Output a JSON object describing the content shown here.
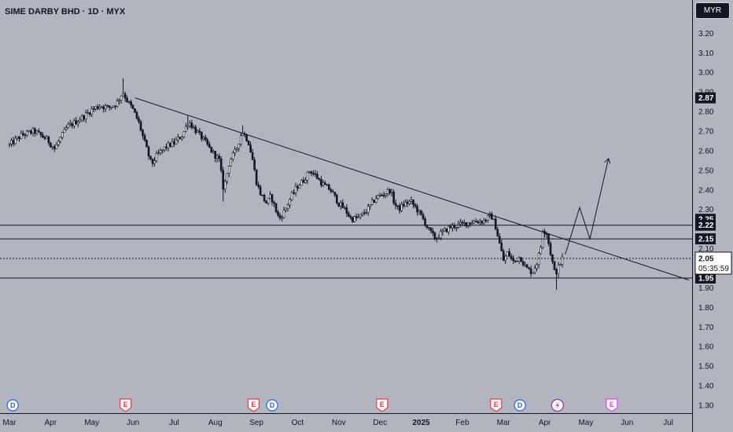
{
  "header": {
    "symbol_title": "SIME DARBY BHD · 1D · MYX",
    "currency": "MYR"
  },
  "chart_data": {
    "type": "candlestick",
    "title": "SIME DARBY BHD · 1D · MYX",
    "y_axis": {
      "ticks": [
        "3.20",
        "3.10",
        "3.00",
        "2.90",
        "2.80",
        "2.70",
        "2.60",
        "2.50",
        "2.40",
        "2.30",
        "2.10",
        "1.90",
        "1.80",
        "1.70",
        "1.60",
        "1.50",
        "1.40",
        "1.30"
      ],
      "ylim": [
        1.26,
        3.32
      ]
    },
    "x_axis": {
      "labels": [
        {
          "text": "Mar",
          "x": 0
        },
        {
          "text": "Apr",
          "x": 1
        },
        {
          "text": "May",
          "x": 2
        },
        {
          "text": "Jun",
          "x": 3
        },
        {
          "text": "Jul",
          "x": 4
        },
        {
          "text": "Aug",
          "x": 5
        },
        {
          "text": "Sep",
          "x": 6
        },
        {
          "text": "Oct",
          "x": 7
        },
        {
          "text": "Nov",
          "x": 8
        },
        {
          "text": "Dec",
          "x": 9
        },
        {
          "text": "2025",
          "x": 10,
          "bold": true
        },
        {
          "text": "Feb",
          "x": 11
        },
        {
          "text": "Mar",
          "x": 12
        },
        {
          "text": "Apr",
          "x": 13
        },
        {
          "text": "May",
          "x": 14
        },
        {
          "text": "Jun",
          "x": 15
        },
        {
          "text": "Jul",
          "x": 16
        }
      ],
      "xlim": [
        0,
        16.5
      ]
    },
    "price_path": [
      [
        0.0,
        2.63
      ],
      [
        0.3,
        2.68
      ],
      [
        0.6,
        2.7
      ],
      [
        0.9,
        2.66
      ],
      [
        1.1,
        2.61
      ],
      [
        1.2,
        2.65
      ],
      [
        1.4,
        2.72
      ],
      [
        1.7,
        2.76
      ],
      [
        1.9,
        2.79
      ],
      [
        2.0,
        2.81
      ],
      [
        2.2,
        2.83
      ],
      [
        2.4,
        2.82
      ],
      [
        2.6,
        2.84
      ],
      [
        2.75,
        2.9
      ],
      [
        2.85,
        2.86
      ],
      [
        3.0,
        2.81
      ],
      [
        3.15,
        2.74
      ],
      [
        3.3,
        2.63
      ],
      [
        3.45,
        2.53
      ],
      [
        3.6,
        2.58
      ],
      [
        3.8,
        2.62
      ],
      [
        4.0,
        2.64
      ],
      [
        4.2,
        2.68
      ],
      [
        4.35,
        2.75
      ],
      [
        4.5,
        2.71
      ],
      [
        4.7,
        2.66
      ],
      [
        4.9,
        2.6
      ],
      [
        5.1,
        2.55
      ],
      [
        5.2,
        2.4
      ],
      [
        5.35,
        2.55
      ],
      [
        5.5,
        2.6
      ],
      [
        5.65,
        2.7
      ],
      [
        5.8,
        2.65
      ],
      [
        5.9,
        2.56
      ],
      [
        6.0,
        2.44
      ],
      [
        6.1,
        2.38
      ],
      [
        6.25,
        2.33
      ],
      [
        6.35,
        2.37
      ],
      [
        6.45,
        2.31
      ],
      [
        6.55,
        2.25
      ],
      [
        6.7,
        2.3
      ],
      [
        6.85,
        2.37
      ],
      [
        7.0,
        2.42
      ],
      [
        7.15,
        2.45
      ],
      [
        7.3,
        2.5
      ],
      [
        7.45,
        2.47
      ],
      [
        7.6,
        2.43
      ],
      [
        7.8,
        2.4
      ],
      [
        8.0,
        2.33
      ],
      [
        8.15,
        2.3
      ],
      [
        8.3,
        2.25
      ],
      [
        8.5,
        2.26
      ],
      [
        8.7,
        2.3
      ],
      [
        8.9,
        2.36
      ],
      [
        9.1,
        2.38
      ],
      [
        9.25,
        2.4
      ],
      [
        9.35,
        2.33
      ],
      [
        9.45,
        2.3
      ],
      [
        9.6,
        2.33
      ],
      [
        9.75,
        2.34
      ],
      [
        9.9,
        2.3
      ],
      [
        10.05,
        2.25
      ],
      [
        10.2,
        2.19
      ],
      [
        10.35,
        2.15
      ],
      [
        10.5,
        2.18
      ],
      [
        10.7,
        2.21
      ],
      [
        10.9,
        2.22
      ],
      [
        11.1,
        2.23
      ],
      [
        11.3,
        2.24
      ],
      [
        11.5,
        2.24
      ],
      [
        11.7,
        2.27
      ],
      [
        11.8,
        2.22
      ],
      [
        11.9,
        2.13
      ],
      [
        12.0,
        2.04
      ],
      [
        12.1,
        2.08
      ],
      [
        12.25,
        2.03
      ],
      [
        12.4,
        2.06
      ],
      [
        12.55,
        2.0
      ],
      [
        12.7,
        1.98
      ],
      [
        12.8,
        2.02
      ],
      [
        12.9,
        2.1
      ],
      [
        12.95,
        2.2
      ],
      [
        13.05,
        2.18
      ],
      [
        13.15,
        2.07
      ],
      [
        13.25,
        1.97
      ],
      [
        13.35,
        2.01
      ],
      [
        13.45,
        2.06
      ]
    ],
    "key_points": [
      {
        "x": 2.75,
        "high": 2.97
      },
      {
        "x": 4.35,
        "high": 2.78
      },
      {
        "x": 5.65,
        "high": 2.73
      },
      {
        "x": 5.2,
        "low": 2.34
      },
      {
        "x": 13.27,
        "low": 1.89
      }
    ],
    "last_price": 2.05,
    "countdown": "05:35:59",
    "horizontal_levels": [
      {
        "price": 2.22,
        "label": "2.22",
        "style": "solid"
      },
      {
        "price": 2.15,
        "label": "2.15",
        "style": "solid"
      },
      {
        "price": 1.95,
        "label": "1.95",
        "style": "solid"
      },
      {
        "price": 2.05,
        "label": "2.05",
        "style": "dotted"
      }
    ],
    "price_tags": [
      {
        "price": 2.87,
        "label": "2.87"
      },
      {
        "price": 2.25,
        "label": "2.25"
      },
      {
        "price": 2.22,
        "label": "2.22"
      },
      {
        "price": 2.15,
        "label": "2.15"
      },
      {
        "price": 1.95,
        "label": "1.95"
      }
    ],
    "trendline": {
      "from": [
        3.05,
        2.87
      ],
      "to": [
        16.5,
        1.94
      ]
    },
    "projection_path": [
      [
        13.5,
        2.07
      ],
      [
        13.85,
        2.31
      ],
      [
        14.1,
        2.15
      ],
      [
        14.55,
        2.56
      ]
    ],
    "events": [
      {
        "type": "D",
        "x": 0.08
      },
      {
        "type": "E",
        "x": 2.82
      },
      {
        "type": "E",
        "x": 5.93
      },
      {
        "type": "D",
        "x": 6.38
      },
      {
        "type": "E",
        "x": 9.05
      },
      {
        "type": "E",
        "x": 11.82
      },
      {
        "type": "D",
        "x": 12.4
      },
      {
        "type": "S",
        "x": 13.31
      },
      {
        "type": "E",
        "x": 14.63
      }
    ]
  }
}
